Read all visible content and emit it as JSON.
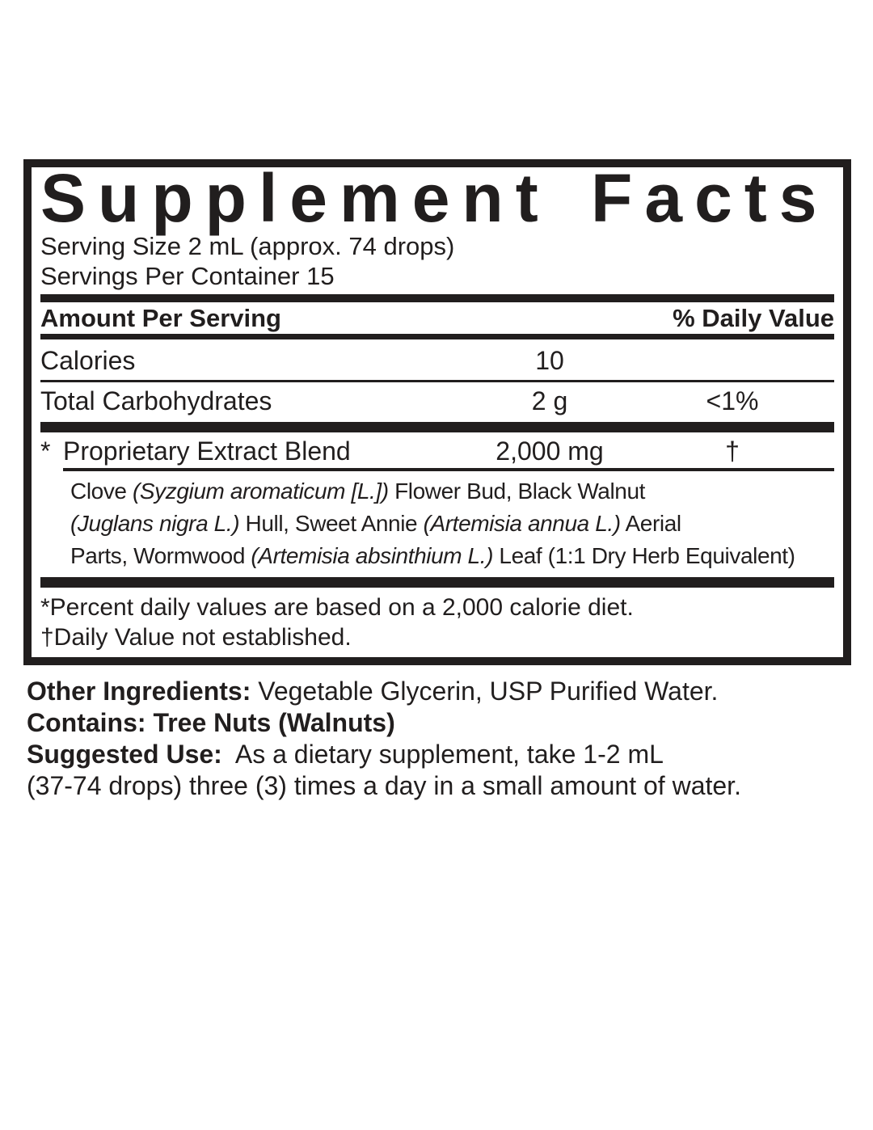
{
  "panel": {
    "title": "Supplement Facts",
    "serving_size": "Serving Size 2 mL (approx. 74 drops)",
    "servings_per_container": "Servings Per Container 15",
    "columns": {
      "amount_header": "Amount Per Serving",
      "dv_header": "% Daily Value"
    },
    "rows": [
      {
        "name": "Calories",
        "amount": "10",
        "dv": ""
      },
      {
        "name": "Total Carbohydrates",
        "amount": "2 g",
        "dv": "<1%"
      }
    ],
    "blend": {
      "marker": "*",
      "name": "Proprietary Extract Blend",
      "amount": "2,000 mg",
      "dv": "†",
      "description_segments": [
        {
          "t": "Clove "
        },
        {
          "t": "(Syzgium aromaticum [L.])",
          "i": true
        },
        {
          "t": " Flower Bud, Black Walnut",
          "br": true
        },
        {
          "t": "(Juglans nigra L.)",
          "i": true
        },
        {
          "t": " Hull, Sweet Annie "
        },
        {
          "t": "(Artemisia annua L.)",
          "i": true
        },
        {
          "t": " Aerial",
          "br": true
        },
        {
          "t": "Parts, Wormwood "
        },
        {
          "t": "(Artemisia absinthium L.)",
          "i": true
        },
        {
          "t": " Leaf (1:1 Dry Herb Equivalent)"
        }
      ]
    },
    "footnotes": [
      "*Percent daily values are based on a 2,000 calorie diet.",
      "†Daily Value not established."
    ]
  },
  "other_info": {
    "paragraphs": [
      {
        "segments": [
          {
            "t": "Other Ingredients: ",
            "b": true
          },
          {
            "t": "Vegetable Glycerin, USP Purified Water."
          }
        ]
      },
      {
        "segments": [
          {
            "t": "Contains: Tree Nuts (Walnuts)",
            "b": true
          }
        ]
      },
      {
        "segments": [
          {
            "t": "Suggested Use:",
            "b": true
          },
          {
            "t": "  As a dietary supplement, take 1-2 mL",
            "br": true
          },
          {
            "t": "(37-74 drops) three (3) times a day in a small amount of water."
          }
        ]
      }
    ]
  },
  "colors": {
    "ink": "#211e1e",
    "background": "#ffffff"
  }
}
